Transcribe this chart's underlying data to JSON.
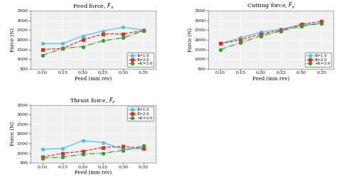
{
  "feed_x": [
    0.1,
    0.15,
    0.2,
    0.25,
    0.3,
    0.35
  ],
  "Fx_K1": [
    1800,
    1800,
    2200,
    2450,
    2650,
    2500
  ],
  "Fx_K2": [
    1500,
    1550,
    2000,
    2300,
    2300,
    2480
  ],
  "Fx_K3": [
    1200,
    1550,
    1650,
    1950,
    2100,
    2470
  ],
  "Fy_K1": [
    1800,
    2100,
    2400,
    2550,
    2750,
    2850
  ],
  "Fy_K2": [
    1800,
    2000,
    2300,
    2500,
    2800,
    2950
  ],
  "Fy_K3": [
    1500,
    1850,
    2200,
    2450,
    2700,
    2850
  ],
  "Fz_K1": [
    1200,
    1250,
    1650,
    1550,
    1200,
    1250
  ],
  "Fz_K2": [
    800,
    1000,
    1100,
    1300,
    1350,
    1250
  ],
  "Fz_K3": [
    750,
    800,
    950,
    1000,
    1150,
    1380
  ],
  "color_K1": "#4dc3e8",
  "color_K2": "#e03030",
  "color_K3": "#30a030",
  "title_Fx": "Feed force, $F_x$",
  "title_Fy": "Cutting force, $F_y$",
  "title_Fz": "Thrust force, $F_z$",
  "xlabel": "Feed (mm rev)",
  "ylabel": "Force (N)",
  "ylim": [
    500,
    3500
  ],
  "yticks": [
    500,
    1000,
    1500,
    2000,
    2500,
    3000,
    3500
  ],
  "xticks": [
    0.1,
    0.15,
    0.2,
    0.25,
    0.3,
    0.35
  ],
  "legend_K1": "K=1.0",
  "legend_K2": "K=2.0",
  "legend_K3": "+K=3.0",
  "bg_color": "#f0f0f0"
}
